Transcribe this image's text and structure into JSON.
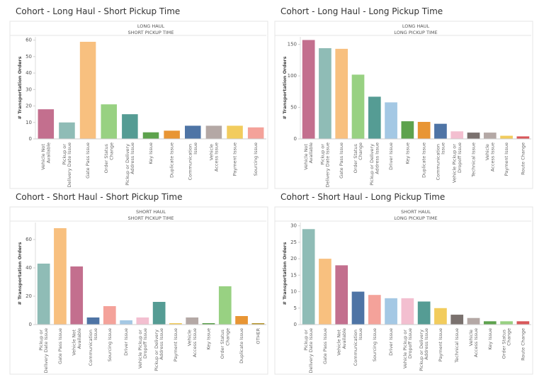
{
  "chart_data": [
    {
      "type": "bar",
      "title": "Cohort - Long Haul - Short Pickup Time",
      "header": [
        "LONG HAUL",
        "SHORT PICKUP TIME"
      ],
      "y_label": "# Transportation Orders",
      "categories": [
        "Vehicle Not Available",
        "Pickup or Delivery Date Issue",
        "Gate Pass Issue",
        "Order Status Change",
        "Pickup or Delivery Address Issue",
        "Key Issue",
        "Duplicate Issue",
        "Communication Issue",
        "Vehicle Access Issue",
        "Payment Issue",
        "Sourcing Issue"
      ],
      "values": [
        18,
        10,
        59,
        21,
        15,
        4,
        5,
        8,
        8,
        8,
        7
      ],
      "colors": [
        "#c36f8e",
        "#8fbcb6",
        "#f8c07f",
        "#98d182",
        "#559c94",
        "#5da24d",
        "#e89534",
        "#4e74a5",
        "#b4a8a5",
        "#f2cc5d",
        "#f4a29a"
      ],
      "ylim": [
        0,
        62
      ],
      "yticks": [
        0,
        10,
        20,
        30,
        40,
        50,
        60
      ]
    },
    {
      "type": "bar",
      "title": "Cohort - Long Haul - Long Pickup Time",
      "header": [
        "LONG HAUL",
        "LONG PICKUP TIME"
      ],
      "y_label": "# Transportation Orders",
      "categories": [
        "Vehicle Not Available",
        "Pickup or Delivery Date Issue",
        "Gate Pass Issue",
        "Order Status Change",
        "Pickup or Delivery Address Issue",
        "Driver Issue",
        "Key Issue",
        "Duplicate Issue",
        "Communication Issue",
        "Vehicle Pickup or Dropoff Issue",
        "Technical Issue",
        "Vehicle Access Issue",
        "Payment Issue",
        "Route Change"
      ],
      "values": [
        157,
        144,
        143,
        102,
        67,
        58,
        28,
        27,
        24,
        12,
        10,
        10,
        5,
        4
      ],
      "colors": [
        "#c36f8e",
        "#8fbcb6",
        "#f8c07f",
        "#98d182",
        "#559c94",
        "#a4c8e4",
        "#5da24d",
        "#e89534",
        "#4e74a5",
        "#f3bfd0",
        "#7a716e",
        "#b4a8a5",
        "#f2cc5d",
        "#d9575a"
      ],
      "ylim": [
        0,
        162
      ],
      "yticks": [
        0,
        50,
        100,
        150
      ]
    },
    {
      "type": "bar",
      "title": "Cohort - Short Haul - Short Pickup Time",
      "header": [
        "SHORT HAUL",
        "SHORT PICKUP TIME"
      ],
      "y_label": "# Transportation Orders",
      "categories": [
        "Pickup or Delivery Date Issue",
        "Gate Pass Issue",
        "Vehicle Not Available",
        "Communication Issue",
        "Sourcing Issue",
        "Driver Issue",
        "Vehicle Pickup or Dropoff Issue",
        "Pickup or Delivery Address Issue",
        "Payment Issue",
        "Vehicle Access Issue",
        "Key Issue",
        "Order Status Change",
        "Duplicate Issue",
        "OTHER"
      ],
      "values": [
        43,
        68,
        41,
        5,
        13,
        3,
        5,
        16,
        1,
        5,
        1,
        27,
        6,
        1
      ],
      "colors": [
        "#8fbcb6",
        "#f8c07f",
        "#c36f8e",
        "#4e74a5",
        "#f4a29a",
        "#a4c8e4",
        "#f3bfd0",
        "#559c94",
        "#f2cc5d",
        "#b4a8a5",
        "#5da24d",
        "#98d182",
        "#e89534",
        "#b8962e"
      ],
      "ylim": [
        0,
        72
      ],
      "yticks": [
        0,
        20,
        40,
        60
      ]
    },
    {
      "type": "bar",
      "title": "Cohort - Short Haul - Long Pickup Time",
      "header": [
        "SHORT HAUL",
        "LONG PICKUP TIME"
      ],
      "y_label": "# Transportation Orders",
      "categories": [
        "Pickup or Delivery Date Issue",
        "Gate Pass Issue",
        "Vehicle Not Available",
        "Communication Issue",
        "Sourcing Issue",
        "Driver Issue",
        "Vehicle Pickup or Dropoff Issue",
        "Pickup or Delivery Address Issue",
        "Payment Issue",
        "Technical Issue",
        "Vehicle Access Issue",
        "Key Issue",
        "Order Status Change",
        "Route Change"
      ],
      "values": [
        29,
        20,
        18,
        10,
        9,
        8,
        8,
        7,
        5,
        3,
        2,
        1,
        1,
        1
      ],
      "colors": [
        "#8fbcb6",
        "#f8c07f",
        "#c36f8e",
        "#4e74a5",
        "#f4a29a",
        "#a4c8e4",
        "#f3bfd0",
        "#559c94",
        "#f2cc5d",
        "#7a716e",
        "#b4a8a5",
        "#5da24d",
        "#98d182",
        "#d9575a"
      ],
      "ylim": [
        0,
        31
      ],
      "yticks": [
        0,
        5,
        10,
        15,
        20,
        25,
        30
      ]
    }
  ]
}
